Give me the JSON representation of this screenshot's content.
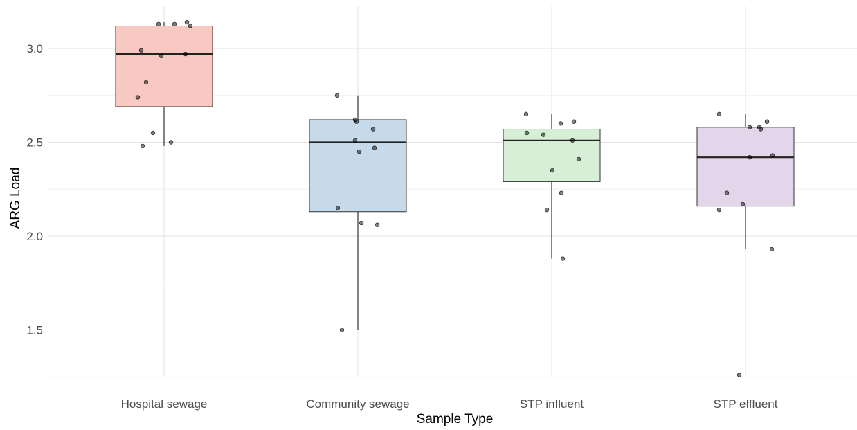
{
  "chart_data": {
    "type": "box",
    "xlabel": "Sample Type",
    "ylabel": "ARG Load",
    "ylim": [
      1.2,
      3.2
    ],
    "yticks": [
      1.5,
      2.0,
      2.5,
      3.0
    ],
    "ytick_labels": [
      "1.5",
      "2.0",
      "2.5",
      "3.0"
    ],
    "grid": true,
    "legend": "none",
    "categories": [
      "Hospital sewage",
      "Community sewage",
      "STP influent",
      "STP effluent"
    ],
    "colors": [
      "#f8c8c3",
      "#c7dae9",
      "#d7efd7",
      "#e4d6ea"
    ],
    "boxes": [
      {
        "q1": 2.69,
        "median": 2.97,
        "q3": 3.12,
        "whisker_low": 2.48,
        "whisker_high": 3.14
      },
      {
        "q1": 2.13,
        "median": 2.5,
        "q3": 2.62,
        "whisker_low": 1.5,
        "whisker_high": 2.75
      },
      {
        "q1": 2.29,
        "median": 2.51,
        "q3": 2.57,
        "whisker_low": 1.88,
        "whisker_high": 2.65
      },
      {
        "q1": 2.16,
        "median": 2.42,
        "q3": 2.58,
        "whisker_low": 1.93,
        "whisker_high": 2.65
      }
    ],
    "points": [
      [
        3.13,
        3.13,
        3.14,
        3.12,
        2.99,
        2.96,
        2.97,
        2.82,
        2.74,
        2.55,
        2.48,
        2.5
      ],
      [
        2.75,
        2.62,
        2.61,
        2.57,
        2.51,
        2.47,
        2.45,
        2.15,
        2.07,
        2.06,
        1.5
      ],
      [
        2.65,
        2.61,
        2.6,
        2.55,
        2.54,
        2.51,
        2.41,
        2.35,
        2.23,
        2.14,
        1.88
      ],
      [
        2.65,
        2.61,
        2.58,
        2.58,
        2.57,
        2.43,
        2.42,
        2.23,
        2.17,
        2.14,
        1.93,
        1.26
      ]
    ]
  }
}
